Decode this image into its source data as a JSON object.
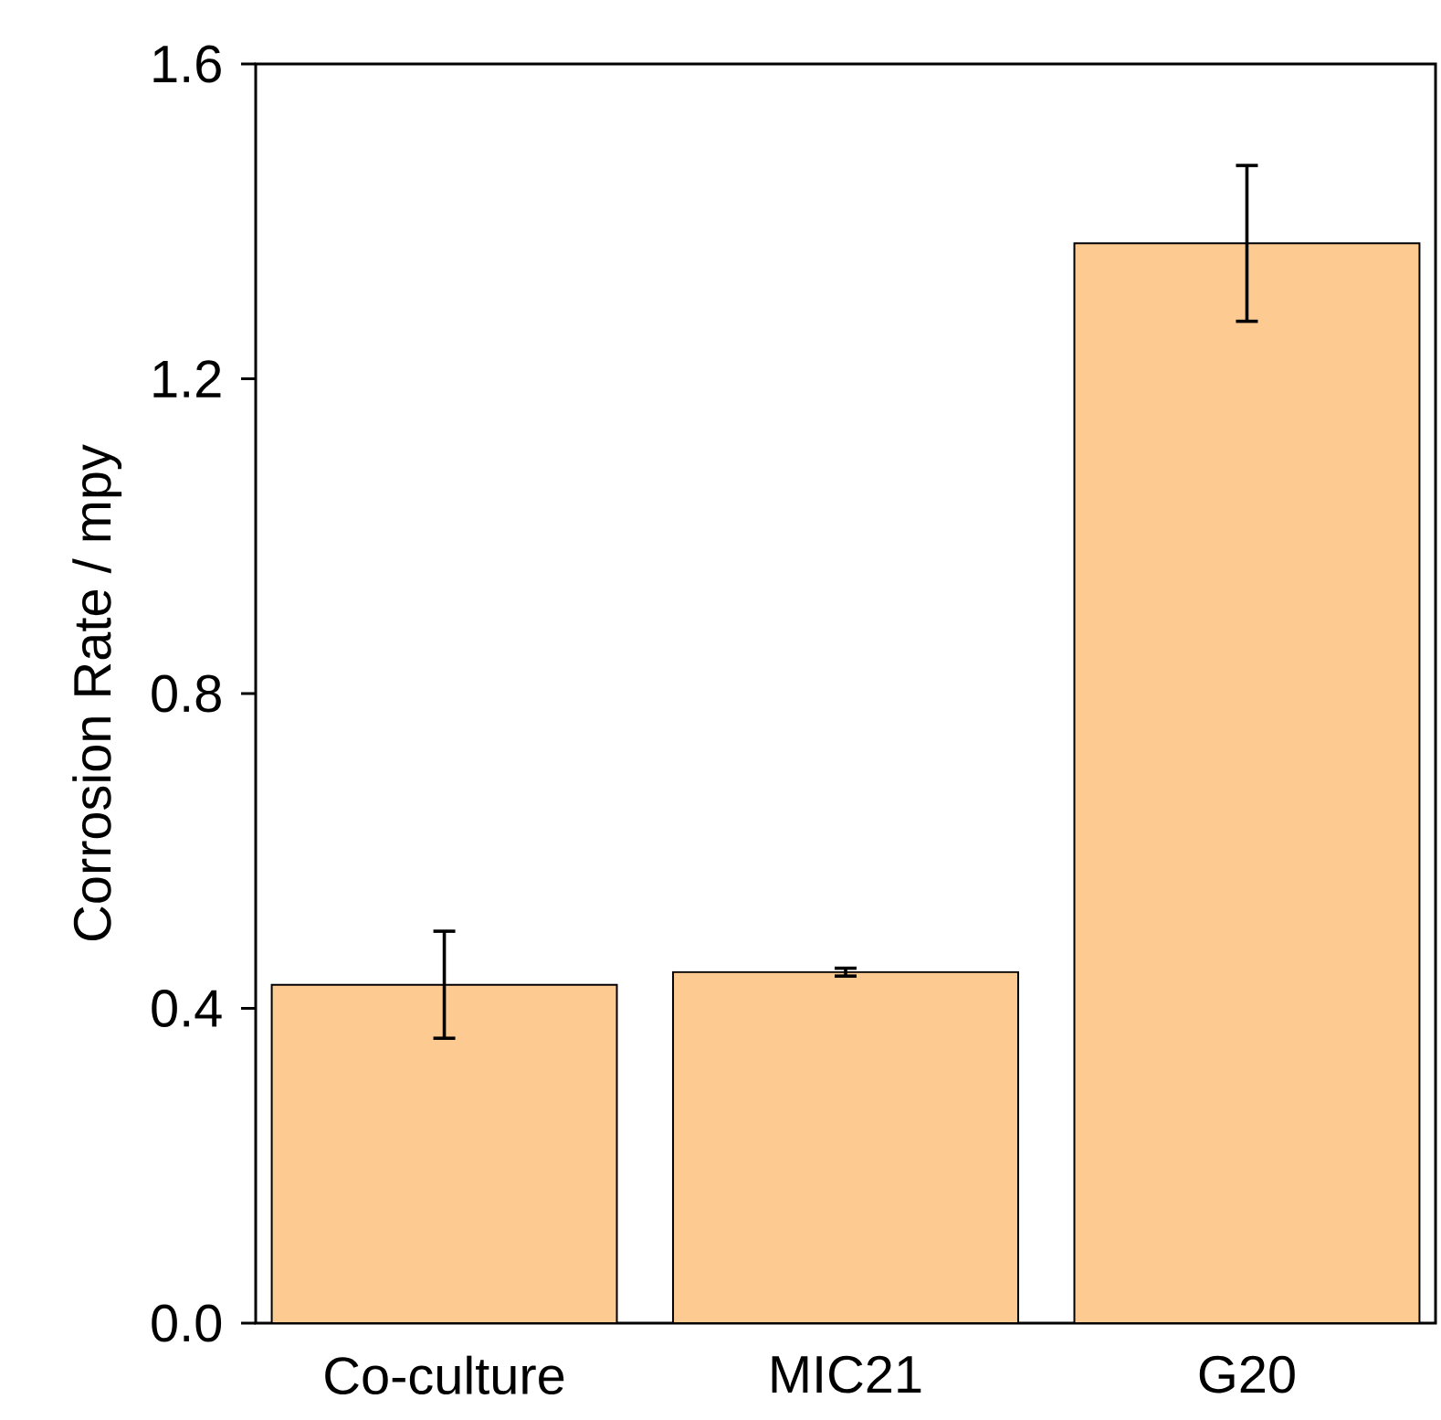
{
  "chart_data": {
    "type": "bar",
    "ylabel": "Corrosion Rate / mpy",
    "categories": [
      "Co-culture",
      "MIC21",
      "G20"
    ],
    "values": [
      0.43,
      0.446,
      1.372
    ],
    "errors": [
      0.068,
      0.005,
      0.099
    ],
    "color": "#fdcb92",
    "ylim": [
      0,
      1.6
    ],
    "yticks": [
      {
        "value": 0,
        "label": "0.0"
      },
      {
        "value": 0.4,
        "label": "0.4"
      },
      {
        "value": 0.8,
        "label": "0.8"
      },
      {
        "value": 1.2,
        "label": "1.2"
      },
      {
        "value": 1.6,
        "label": "1.6"
      }
    ],
    "grid": false
  }
}
